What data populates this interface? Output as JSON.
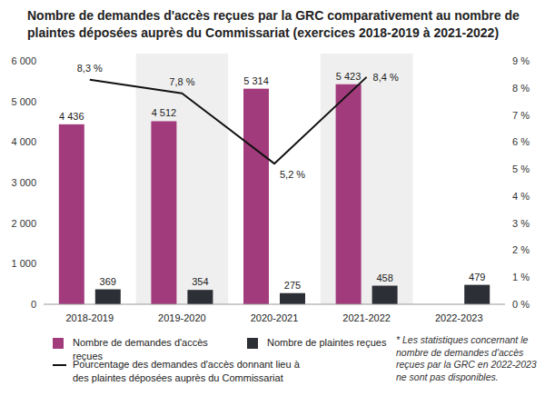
{
  "chart_data": {
    "type": "bar",
    "title": "Nombre de demandes d'accès reçues par la GRC comparativement au nombre de plaintes déposées auprès du Commissariat (exercices 2018-2019 à 2021-2022)",
    "categories": [
      "2018-2019",
      "2019-2020",
      "2020-2021",
      "2021-2022",
      "2022-2023"
    ],
    "series": [
      {
        "name": "Nombre de demandes d'accès reçues",
        "color": "#a23b7c",
        "type": "bar",
        "values": [
          4436,
          4512,
          5314,
          5423,
          null
        ],
        "value_labels": [
          "4 436",
          "4 512",
          "5 314",
          "5 423",
          null
        ]
      },
      {
        "name": "Nombre de plaintes reçues",
        "color": "#2d2f36",
        "type": "bar",
        "values": [
          369,
          354,
          275,
          458,
          479
        ]
      },
      {
        "name": "Pourcentage des demandes d'accès donnant lieu à des plaintes déposées auprès du Commissariat",
        "color": "#111111",
        "type": "line",
        "axis": "y2",
        "values": [
          8.3,
          7.8,
          5.2,
          8.4,
          null
        ],
        "value_labels": [
          "8,3 %",
          "7,8 %",
          "5,2 %",
          "8,4 %",
          null
        ]
      }
    ],
    "ylim": [
      0,
      6000
    ],
    "yticks": [
      0,
      {
        "value": 1000,
        "label": "1 000"
      },
      {
        "value": 2000,
        "label": "2 000"
      },
      {
        "value": 3000,
        "label": "3 000"
      },
      {
        "value": 4000,
        "label": "4 000"
      },
      {
        "value": 5000,
        "label": "5 000"
      },
      {
        "value": 6000,
        "label": "6 000"
      }
    ],
    "y2lim": [
      0,
      9
    ],
    "y2ticks": [
      {
        "value": 0,
        "label": "0 %"
      },
      {
        "value": 1,
        "label": "1 %"
      },
      {
        "value": 2,
        "label": "2 %"
      },
      {
        "value": 3,
        "label": "3 %"
      },
      {
        "value": 4,
        "label": "4 %"
      },
      {
        "value": 5,
        "label": "5 %"
      },
      {
        "value": 6,
        "label": "6 %"
      },
      {
        "value": 7,
        "label": "7 %"
      },
      {
        "value": 8,
        "label": "8 %"
      },
      {
        "value": 9,
        "label": "9 %"
      }
    ],
    "grid": false,
    "data_labels": true,
    "legend": "bottom",
    "annotations": [
      "* Les statistiques concernant le nombre de demandes d'accès reçues par la GRC en 2022-2023 ne sont pas disponibles."
    ]
  }
}
